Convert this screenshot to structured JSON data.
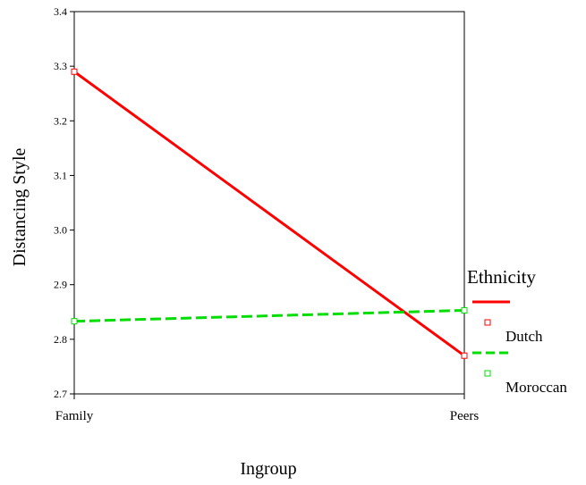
{
  "chart_data": {
    "type": "line",
    "xlabel": "Ingroup",
    "ylabel": "Distancing Style",
    "categories": [
      "Family",
      "Peers"
    ],
    "ylim": [
      2.7,
      3.4
    ],
    "yticks": [
      "2.7",
      "2.8",
      "2.9",
      "3.0",
      "3.1",
      "3.2",
      "3.3",
      "3.4"
    ],
    "legend": {
      "title": "Ethnicity",
      "position": "right"
    },
    "series": [
      {
        "name": "Dutch",
        "values": [
          3.29,
          2.77
        ],
        "color": "#ff0000",
        "line_style": "solid"
      },
      {
        "name": "Moroccan",
        "values": [
          2.833,
          2.853
        ],
        "color": "#00dd00",
        "line_style": "dashed"
      }
    ],
    "grid": false
  }
}
